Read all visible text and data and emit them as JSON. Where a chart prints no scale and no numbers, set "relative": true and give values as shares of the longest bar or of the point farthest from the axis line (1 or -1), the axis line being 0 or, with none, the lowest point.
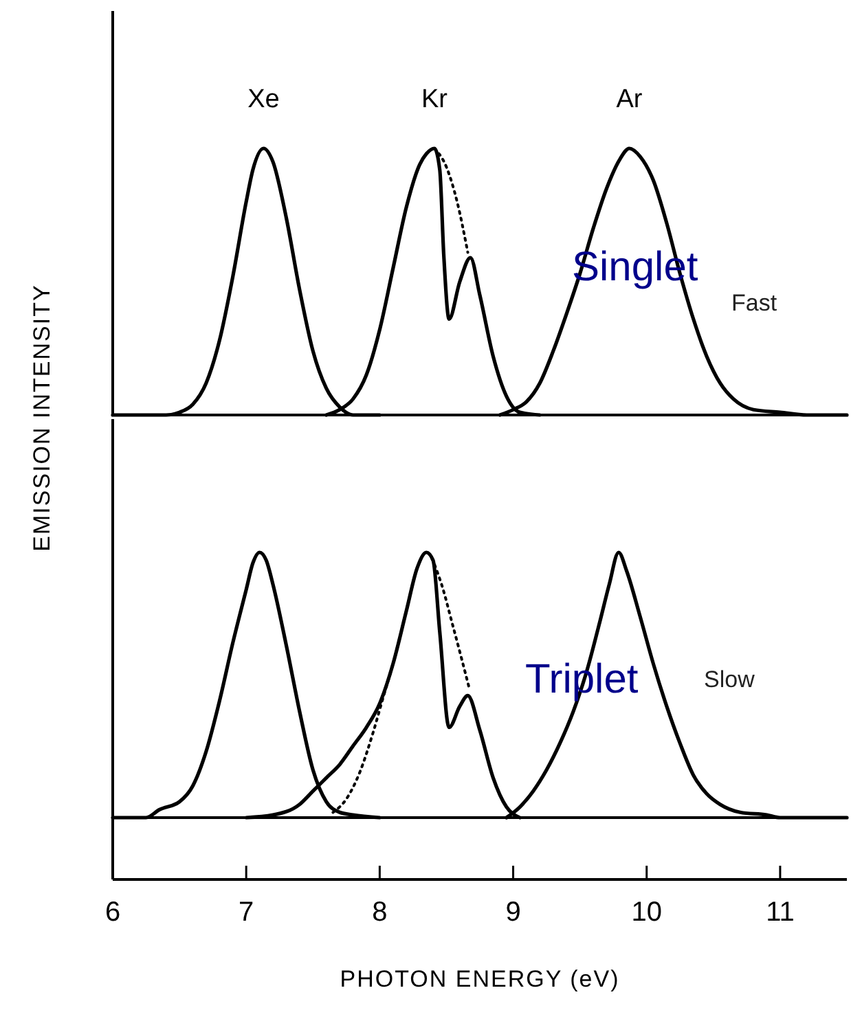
{
  "chart_data": [
    {
      "type": "line",
      "ylabel": "EMISSION INTENSITY",
      "annotations": [
        "Singlet",
        "Fast"
      ],
      "relative": true,
      "xlim": [
        6,
        11.5
      ],
      "series": [
        {
          "name": "Xe",
          "color": "#000000",
          "x": [
            6.0,
            6.3,
            6.4,
            6.5,
            6.6,
            6.7,
            6.8,
            6.9,
            7.0,
            7.05,
            7.13,
            7.2,
            7.3,
            7.4,
            7.5,
            7.6,
            7.7,
            7.8,
            8.0
          ],
          "values": [
            0,
            0,
            0,
            0.01,
            0.04,
            0.12,
            0.28,
            0.52,
            0.8,
            0.92,
            1.0,
            0.95,
            0.74,
            0.47,
            0.24,
            0.1,
            0.03,
            0,
            0
          ]
        },
        {
          "name": "Kr",
          "color": "#000000",
          "x": [
            7.6,
            7.7,
            7.8,
            7.9,
            8.0,
            8.1,
            8.2,
            8.3,
            8.35,
            8.41,
            8.45,
            8.48,
            8.52,
            8.6,
            8.68,
            8.75,
            8.85,
            8.95,
            9.05,
            9.2
          ],
          "values": [
            0,
            0.02,
            0.06,
            0.15,
            0.32,
            0.55,
            0.78,
            0.94,
            0.98,
            1.0,
            0.92,
            0.6,
            0.36,
            0.5,
            0.59,
            0.45,
            0.22,
            0.07,
            0.01,
            0
          ]
        },
        {
          "color": "#000000",
          "line_style": "dotted",
          "x": [
            8.41,
            8.5,
            8.58,
            8.66
          ],
          "values": [
            1.0,
            0.93,
            0.8,
            0.61
          ]
        },
        {
          "name": "Ar",
          "color": "#000000",
          "x": [
            8.9,
            9.0,
            9.1,
            9.2,
            9.3,
            9.4,
            9.5,
            9.6,
            9.7,
            9.8,
            9.87,
            9.95,
            10.05,
            10.15,
            10.25,
            10.35,
            10.45,
            10.55,
            10.65,
            10.8,
            11.0,
            11.2,
            11.5
          ],
          "values": [
            0,
            0.02,
            0.05,
            0.12,
            0.24,
            0.38,
            0.53,
            0.7,
            0.85,
            0.96,
            1.0,
            0.97,
            0.88,
            0.72,
            0.53,
            0.36,
            0.22,
            0.12,
            0.06,
            0.02,
            0.01,
            0,
            0
          ]
        }
      ]
    },
    {
      "type": "line",
      "xlabel": "PHOTON ENERGY (eV)",
      "annotations": [
        "Triplet",
        "Slow"
      ],
      "relative": true,
      "xlim": [
        6,
        11.5
      ],
      "xticks": [
        6,
        7,
        8,
        9,
        10,
        11
      ],
      "series": [
        {
          "color": "#000000",
          "x": [
            6.0,
            6.25,
            6.35,
            6.5,
            6.6,
            6.7,
            6.8,
            6.9,
            7.0,
            7.05,
            7.1,
            7.15,
            7.2,
            7.3,
            7.4,
            7.5,
            7.6,
            7.7,
            7.8,
            8.0
          ],
          "values": [
            0,
            0,
            0.03,
            0.06,
            0.12,
            0.25,
            0.44,
            0.66,
            0.86,
            0.96,
            1.0,
            0.97,
            0.88,
            0.65,
            0.4,
            0.18,
            0.06,
            0.02,
            0.01,
            0
          ]
        },
        {
          "color": "#000000",
          "x": [
            7.0,
            7.2,
            7.4,
            7.5,
            7.6,
            7.7,
            7.8,
            7.9,
            8.0,
            8.1,
            8.2,
            8.28,
            8.35,
            8.4,
            8.45,
            8.52,
            8.6,
            8.66,
            8.75,
            8.85,
            8.95,
            9.05
          ],
          "values": [
            0,
            0.01,
            0.05,
            0.1,
            0.15,
            0.2,
            0.27,
            0.34,
            0.43,
            0.58,
            0.78,
            0.94,
            1.0,
            0.97,
            0.7,
            0.34,
            0.42,
            0.46,
            0.33,
            0.15,
            0.04,
            0
          ]
        },
        {
          "color": "#000000",
          "line_style": "dotted",
          "x": [
            7.65,
            7.75,
            7.85,
            7.95,
            8.03,
            8.1,
            8.2,
            8.28,
            8.35,
            8.45,
            8.55,
            8.67
          ],
          "values": [
            0.02,
            0.07,
            0.17,
            0.32,
            0.46,
            0.58,
            0.78,
            0.94,
            1.0,
            0.9,
            0.72,
            0.49
          ]
        },
        {
          "color": "#000000",
          "x": [
            8.95,
            9.05,
            9.15,
            9.25,
            9.35,
            9.45,
            9.55,
            9.65,
            9.72,
            9.79,
            9.85,
            9.95,
            10.05,
            10.15,
            10.25,
            10.35,
            10.45,
            10.55,
            10.7,
            10.9,
            11.0,
            11.5
          ],
          "values": [
            0,
            0.04,
            0.1,
            0.18,
            0.28,
            0.4,
            0.55,
            0.74,
            0.88,
            1.0,
            0.93,
            0.76,
            0.58,
            0.42,
            0.28,
            0.16,
            0.09,
            0.05,
            0.02,
            0.01,
            0,
            0
          ]
        }
      ]
    }
  ]
}
